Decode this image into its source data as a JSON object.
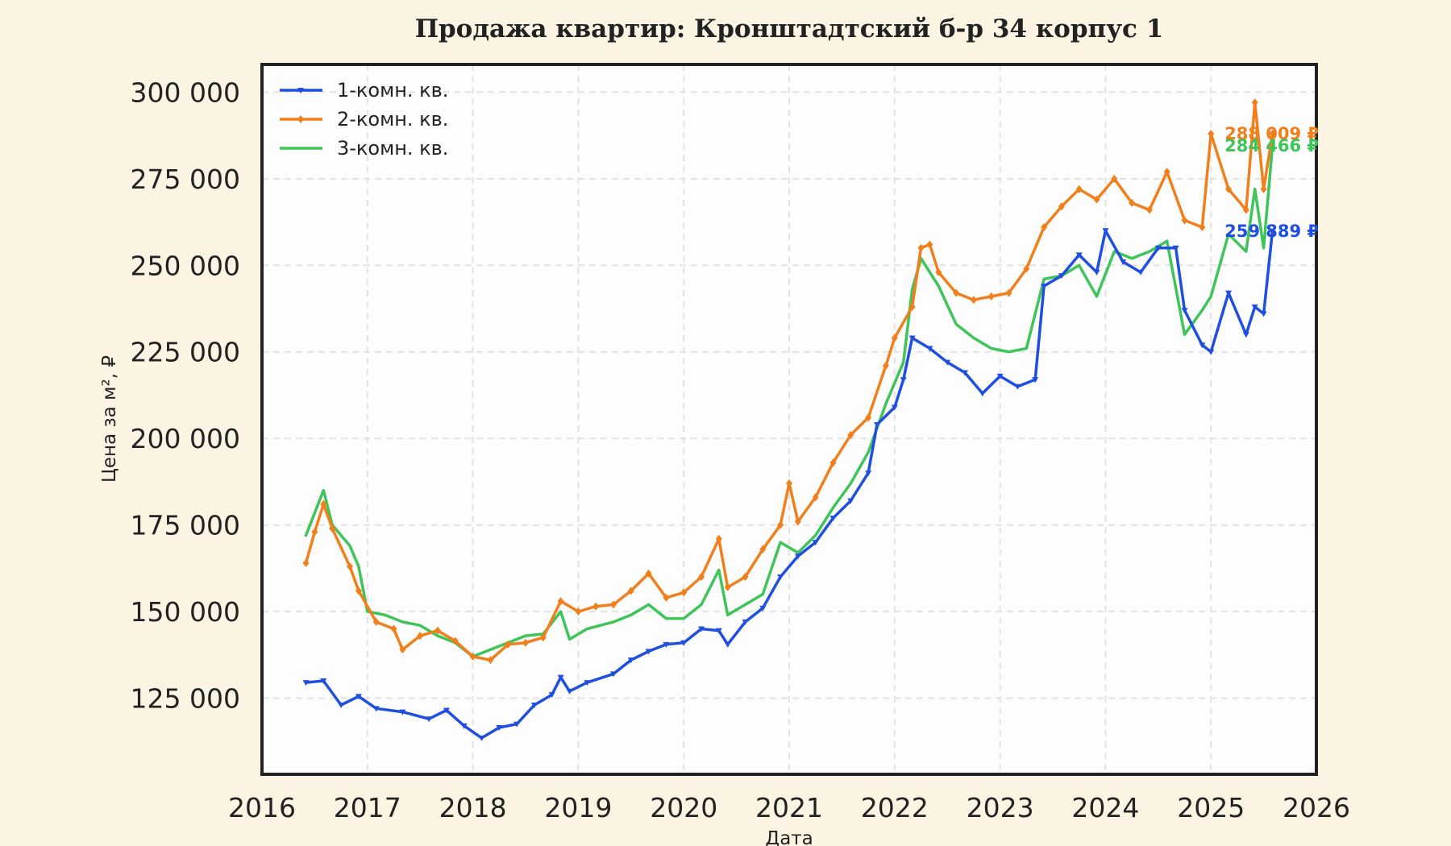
{
  "chart_data": {
    "type": "line",
    "title": "Продажа квартир: Кронштадтский б-р 34 корпус 1",
    "xlabel": "Дата",
    "ylabel": "Цена за м², ₽",
    "x_ticks": [
      "2016",
      "2017",
      "2018",
      "2019",
      "2020",
      "2021",
      "2022",
      "2023",
      "2024",
      "2025",
      "2026"
    ],
    "y_ticks": [
      "125 000",
      "150 000",
      "175 000",
      "200 000",
      "225 000",
      "250 000",
      "275 000",
      "300 000"
    ],
    "xlim": [
      "2016-01-01",
      "2026-01-01"
    ],
    "ylim": [
      103000,
      308000
    ],
    "grid": true,
    "legend_position": "top-left",
    "series": [
      {
        "name": "1-комн. кв.",
        "color": "#1f4fe0",
        "marker": "triangle-down",
        "end_label": "259 889 ₽",
        "points": [
          [
            "2016-06",
            129500
          ],
          [
            "2016-08",
            130000
          ],
          [
            "2016-10",
            123000
          ],
          [
            "2016-12",
            125500
          ],
          [
            "2017-02",
            122000
          ],
          [
            "2017-05",
            121000
          ],
          [
            "2017-08",
            119000
          ],
          [
            "2017-10",
            121500
          ],
          [
            "2017-12",
            117000
          ],
          [
            "2018-02",
            113500
          ],
          [
            "2018-04",
            116500
          ],
          [
            "2018-06",
            117500
          ],
          [
            "2018-08",
            123000
          ],
          [
            "2018-10",
            126000
          ],
          [
            "2018-11",
            131000
          ],
          [
            "2018-12",
            127000
          ],
          [
            "2019-02",
            129500
          ],
          [
            "2019-05",
            132000
          ],
          [
            "2019-07",
            136000
          ],
          [
            "2019-09",
            138500
          ],
          [
            "2019-11",
            140500
          ],
          [
            "2020-01",
            141000
          ],
          [
            "2020-03",
            145000
          ],
          [
            "2020-05",
            144500
          ],
          [
            "2020-06",
            140500
          ],
          [
            "2020-08",
            147000
          ],
          [
            "2020-10",
            151000
          ],
          [
            "2020-12",
            160000
          ],
          [
            "2021-02",
            166000
          ],
          [
            "2021-04",
            170000
          ],
          [
            "2021-06",
            177000
          ],
          [
            "2021-08",
            182000
          ],
          [
            "2021-10",
            190000
          ],
          [
            "2021-11",
            204000
          ],
          [
            "2022-01",
            209000
          ],
          [
            "2022-02",
            217000
          ],
          [
            "2022-03",
            229000
          ],
          [
            "2022-05",
            226000
          ],
          [
            "2022-07",
            222000
          ],
          [
            "2022-09",
            219000
          ],
          [
            "2022-11",
            213000
          ],
          [
            "2023-01",
            218000
          ],
          [
            "2023-03",
            215000
          ],
          [
            "2023-05",
            217000
          ],
          [
            "2023-06",
            244000
          ],
          [
            "2023-08",
            247000
          ],
          [
            "2023-10",
            253000
          ],
          [
            "2023-12",
            248000
          ],
          [
            "2024-01",
            260000
          ],
          [
            "2024-03",
            251000
          ],
          [
            "2024-05",
            248000
          ],
          [
            "2024-07",
            255000
          ],
          [
            "2024-09",
            255000
          ],
          [
            "2024-10",
            237000
          ],
          [
            "2024-12",
            227000
          ],
          [
            "2025-01",
            225000
          ],
          [
            "2025-03",
            242000
          ],
          [
            "2025-05",
            230000
          ],
          [
            "2025-06",
            238000
          ],
          [
            "2025-07",
            236000
          ],
          [
            "2025-08",
            259889
          ]
        ]
      },
      {
        "name": "2-комн. кв.",
        "color": "#f07f1c",
        "marker": "diamond",
        "end_label": "288 009 ₽",
        "points": [
          [
            "2016-06",
            164000
          ],
          [
            "2016-07",
            173000
          ],
          [
            "2016-08",
            181000
          ],
          [
            "2016-09",
            174000
          ],
          [
            "2016-11",
            163000
          ],
          [
            "2016-12",
            156000
          ],
          [
            "2017-02",
            147000
          ],
          [
            "2017-04",
            145000
          ],
          [
            "2017-05",
            139000
          ],
          [
            "2017-07",
            143000
          ],
          [
            "2017-09",
            144500
          ],
          [
            "2017-11",
            141500
          ],
          [
            "2018-01",
            137000
          ],
          [
            "2018-03",
            136000
          ],
          [
            "2018-05",
            140500
          ],
          [
            "2018-07",
            141000
          ],
          [
            "2018-09",
            142500
          ],
          [
            "2018-11",
            153000
          ],
          [
            "2019-01",
            150000
          ],
          [
            "2019-03",
            151500
          ],
          [
            "2019-05",
            152000
          ],
          [
            "2019-07",
            156000
          ],
          [
            "2019-09",
            161000
          ],
          [
            "2019-11",
            154000
          ],
          [
            "2020-01",
            155500
          ],
          [
            "2020-03",
            160000
          ],
          [
            "2020-05",
            171000
          ],
          [
            "2020-06",
            157000
          ],
          [
            "2020-08",
            160000
          ],
          [
            "2020-10",
            168000
          ],
          [
            "2020-12",
            175000
          ],
          [
            "2021-01",
            187000
          ],
          [
            "2021-02",
            176000
          ],
          [
            "2021-04",
            183000
          ],
          [
            "2021-06",
            193000
          ],
          [
            "2021-08",
            201000
          ],
          [
            "2021-10",
            206000
          ],
          [
            "2021-12",
            221000
          ],
          [
            "2022-01",
            229000
          ],
          [
            "2022-03",
            238000
          ],
          [
            "2022-04",
            255000
          ],
          [
            "2022-05",
            256000
          ],
          [
            "2022-06",
            248000
          ],
          [
            "2022-08",
            242000
          ],
          [
            "2022-10",
            240000
          ],
          [
            "2022-12",
            241000
          ],
          [
            "2023-02",
            242000
          ],
          [
            "2023-04",
            249000
          ],
          [
            "2023-06",
            261000
          ],
          [
            "2023-08",
            267000
          ],
          [
            "2023-10",
            272000
          ],
          [
            "2023-12",
            269000
          ],
          [
            "2024-02",
            275000
          ],
          [
            "2024-04",
            268000
          ],
          [
            "2024-06",
            266000
          ],
          [
            "2024-08",
            277000
          ],
          [
            "2024-10",
            263000
          ],
          [
            "2024-12",
            261000
          ],
          [
            "2025-01",
            288000
          ],
          [
            "2025-03",
            272000
          ],
          [
            "2025-05",
            266000
          ],
          [
            "2025-06",
            297000
          ],
          [
            "2025-07",
            272000
          ],
          [
            "2025-08",
            288009
          ]
        ]
      },
      {
        "name": "3-комн. кв.",
        "color": "#3fc45a",
        "marker": "none",
        "end_label": "284 466 ₽",
        "points": [
          [
            "2016-06",
            172000
          ],
          [
            "2016-08",
            185000
          ],
          [
            "2016-09",
            175000
          ],
          [
            "2016-11",
            169000
          ],
          [
            "2016-12",
            163000
          ],
          [
            "2017-01",
            150000
          ],
          [
            "2017-03",
            149000
          ],
          [
            "2017-05",
            147000
          ],
          [
            "2017-07",
            146000
          ],
          [
            "2017-09",
            143000
          ],
          [
            "2017-11",
            141000
          ],
          [
            "2018-01",
            137000
          ],
          [
            "2018-03",
            139000
          ],
          [
            "2018-05",
            141000
          ],
          [
            "2018-07",
            143000
          ],
          [
            "2018-09",
            143500
          ],
          [
            "2018-11",
            150000
          ],
          [
            "2018-12",
            142000
          ],
          [
            "2019-02",
            145000
          ],
          [
            "2019-05",
            147000
          ],
          [
            "2019-07",
            149000
          ],
          [
            "2019-09",
            152000
          ],
          [
            "2019-11",
            148000
          ],
          [
            "2020-01",
            148000
          ],
          [
            "2020-03",
            152000
          ],
          [
            "2020-05",
            162000
          ],
          [
            "2020-06",
            149000
          ],
          [
            "2020-08",
            152000
          ],
          [
            "2020-10",
            155000
          ],
          [
            "2020-12",
            170000
          ],
          [
            "2021-02",
            167000
          ],
          [
            "2021-04",
            172000
          ],
          [
            "2021-06",
            180000
          ],
          [
            "2021-08",
            187000
          ],
          [
            "2021-10",
            196000
          ],
          [
            "2021-12",
            210000
          ],
          [
            "2022-02",
            222000
          ],
          [
            "2022-03",
            243000
          ],
          [
            "2022-04",
            252000
          ],
          [
            "2022-06",
            244000
          ],
          [
            "2022-08",
            233000
          ],
          [
            "2022-10",
            229000
          ],
          [
            "2022-12",
            226000
          ],
          [
            "2023-02",
            225000
          ],
          [
            "2023-04",
            226000
          ],
          [
            "2023-06",
            246000
          ],
          [
            "2023-08",
            247000
          ],
          [
            "2023-10",
            250000
          ],
          [
            "2023-12",
            241000
          ],
          [
            "2024-02",
            254000
          ],
          [
            "2024-04",
            252000
          ],
          [
            "2024-06",
            254000
          ],
          [
            "2024-08",
            257000
          ],
          [
            "2024-10",
            230000
          ],
          [
            "2024-12",
            237000
          ],
          [
            "2025-01",
            241000
          ],
          [
            "2025-03",
            259000
          ],
          [
            "2025-05",
            254000
          ],
          [
            "2025-06",
            272000
          ],
          [
            "2025-07",
            255000
          ],
          [
            "2025-08",
            284466
          ]
        ]
      }
    ]
  }
}
